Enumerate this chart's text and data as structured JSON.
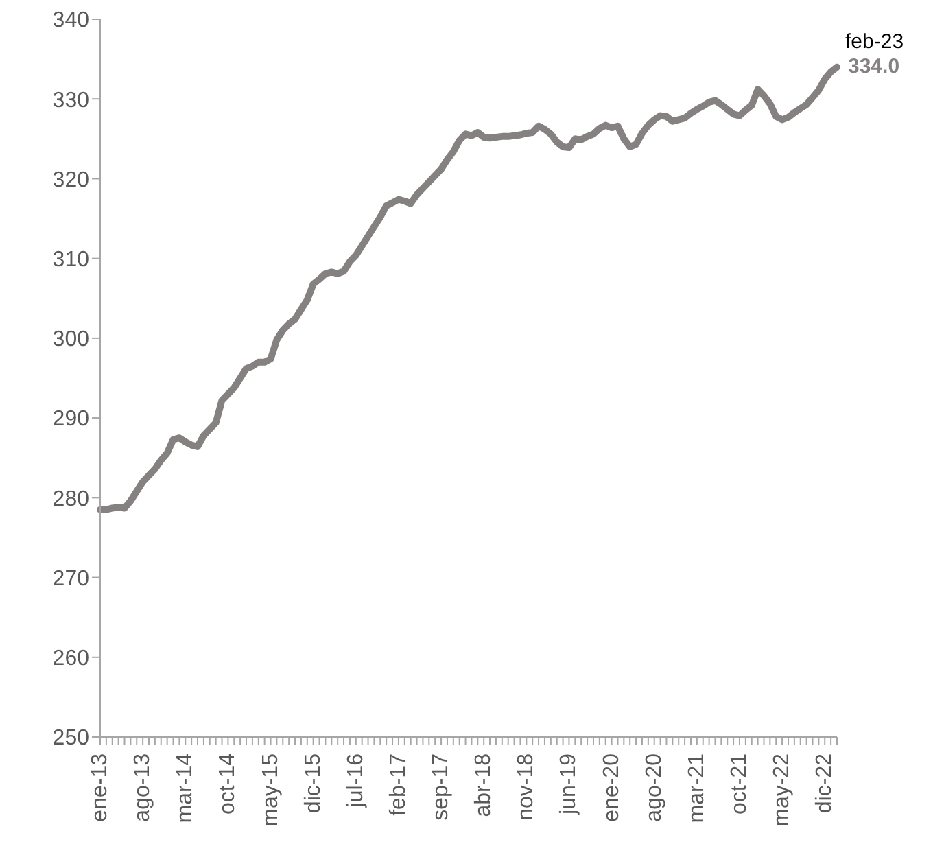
{
  "chart_data": {
    "type": "line",
    "categories": [
      "ene-13",
      null,
      null,
      null,
      null,
      null,
      null,
      "ago-13",
      null,
      null,
      null,
      null,
      null,
      null,
      "mar-14",
      null,
      null,
      null,
      null,
      null,
      null,
      "oct-14",
      null,
      null,
      null,
      null,
      null,
      null,
      "may-15",
      null,
      null,
      null,
      null,
      null,
      null,
      "dic-15",
      null,
      null,
      null,
      null,
      null,
      null,
      "jul-16",
      null,
      null,
      null,
      null,
      null,
      null,
      "feb-17",
      null,
      null,
      null,
      null,
      null,
      null,
      "sep-17",
      null,
      null,
      null,
      null,
      null,
      null,
      "abr-18",
      null,
      null,
      null,
      null,
      null,
      null,
      "nov-18",
      null,
      null,
      null,
      null,
      null,
      null,
      "jun-19",
      null,
      null,
      null,
      null,
      null,
      null,
      "ene-20",
      null,
      null,
      null,
      null,
      null,
      null,
      "ago-20",
      null,
      null,
      null,
      null,
      null,
      null,
      "mar-21",
      null,
      null,
      null,
      null,
      null,
      null,
      "oct-21",
      null,
      null,
      null,
      null,
      null,
      null,
      "may-22",
      null,
      null,
      null,
      null,
      null,
      null,
      "dic-22",
      null,
      null
    ],
    "series": [
      {
        "color": "#858180",
        "values": [
          278.5,
          278.5,
          278.7,
          278.8,
          278.7,
          279.6,
          280.8,
          282,
          282.8,
          283.6,
          284.7,
          285.6,
          287.3,
          287.5,
          287,
          286.6,
          286.4,
          287.8,
          288.6,
          289.4,
          292.2,
          293,
          293.8,
          295,
          296.2,
          296.5,
          297,
          297,
          297.4,
          299.8,
          301,
          301.8,
          302.4,
          303.6,
          304.8,
          306.8,
          307.4,
          308.1,
          308.3,
          308.1,
          308.4,
          309.6,
          310.4,
          311.6,
          312.8,
          314,
          315.2,
          316.6,
          317,
          317.4,
          317.2,
          316.9,
          318,
          318.8,
          319.6,
          320.4,
          321.2,
          322.4,
          323.4,
          324.8,
          325.6,
          325.4,
          325.8,
          325.2,
          325.1,
          325.2,
          325.3,
          325.3,
          325.4,
          325.5,
          325.7,
          325.8,
          326.6,
          326.2,
          325.6,
          324.6,
          324,
          323.9,
          325,
          324.9,
          325.3,
          325.6,
          326.3,
          326.7,
          326.4,
          326.6,
          325,
          324,
          324.3,
          325.7,
          326.7,
          327.4,
          327.9,
          327.8,
          327.2,
          327.4,
          327.6,
          328.2,
          328.7,
          329.1,
          329.6,
          329.8,
          329.3,
          328.7,
          328.1,
          327.9,
          328.6,
          329.2,
          331.2,
          330.4,
          329.4,
          327.8,
          327.4,
          327.7,
          328.3,
          328.8,
          329.3,
          330.2,
          331.1,
          332.5,
          333.4,
          334.0
        ],
        "value_labels": [
          null,
          null,
          null,
          null,
          null,
          null,
          null,
          null,
          null,
          null,
          null,
          null,
          null,
          null,
          null,
          null,
          null,
          null,
          null,
          null,
          null,
          null,
          null,
          null,
          null,
          null,
          null,
          null,
          null,
          null,
          null,
          null,
          null,
          null,
          null,
          null,
          null,
          null,
          null,
          null,
          null,
          null,
          null,
          null,
          null,
          null,
          null,
          null,
          null,
          null,
          null,
          null,
          null,
          null,
          null,
          null,
          null,
          null,
          null,
          null,
          null,
          null,
          null,
          null,
          null,
          null,
          null,
          null,
          null,
          null,
          null,
          null,
          null,
          null,
          null,
          null,
          null,
          null,
          null,
          null,
          null,
          null,
          null,
          null,
          null,
          null,
          null,
          null,
          null,
          null,
          null,
          null,
          null,
          null,
          null,
          null,
          null,
          null,
          null,
          null,
          null,
          null,
          null,
          null,
          null,
          null,
          null,
          null,
          null,
          null,
          null,
          null,
          null,
          null,
          null,
          null,
          null,
          null,
          null,
          null,
          null,
          "334.0"
        ]
      }
    ],
    "annotations": [
      "feb-23"
    ],
    "ylim": [
      250,
      340
    ],
    "yticks": [
      250,
      260,
      270,
      280,
      290,
      300,
      310,
      320,
      330,
      340
    ],
    "grid": false,
    "legend": false,
    "marker": "none",
    "line_style": "solid"
  }
}
